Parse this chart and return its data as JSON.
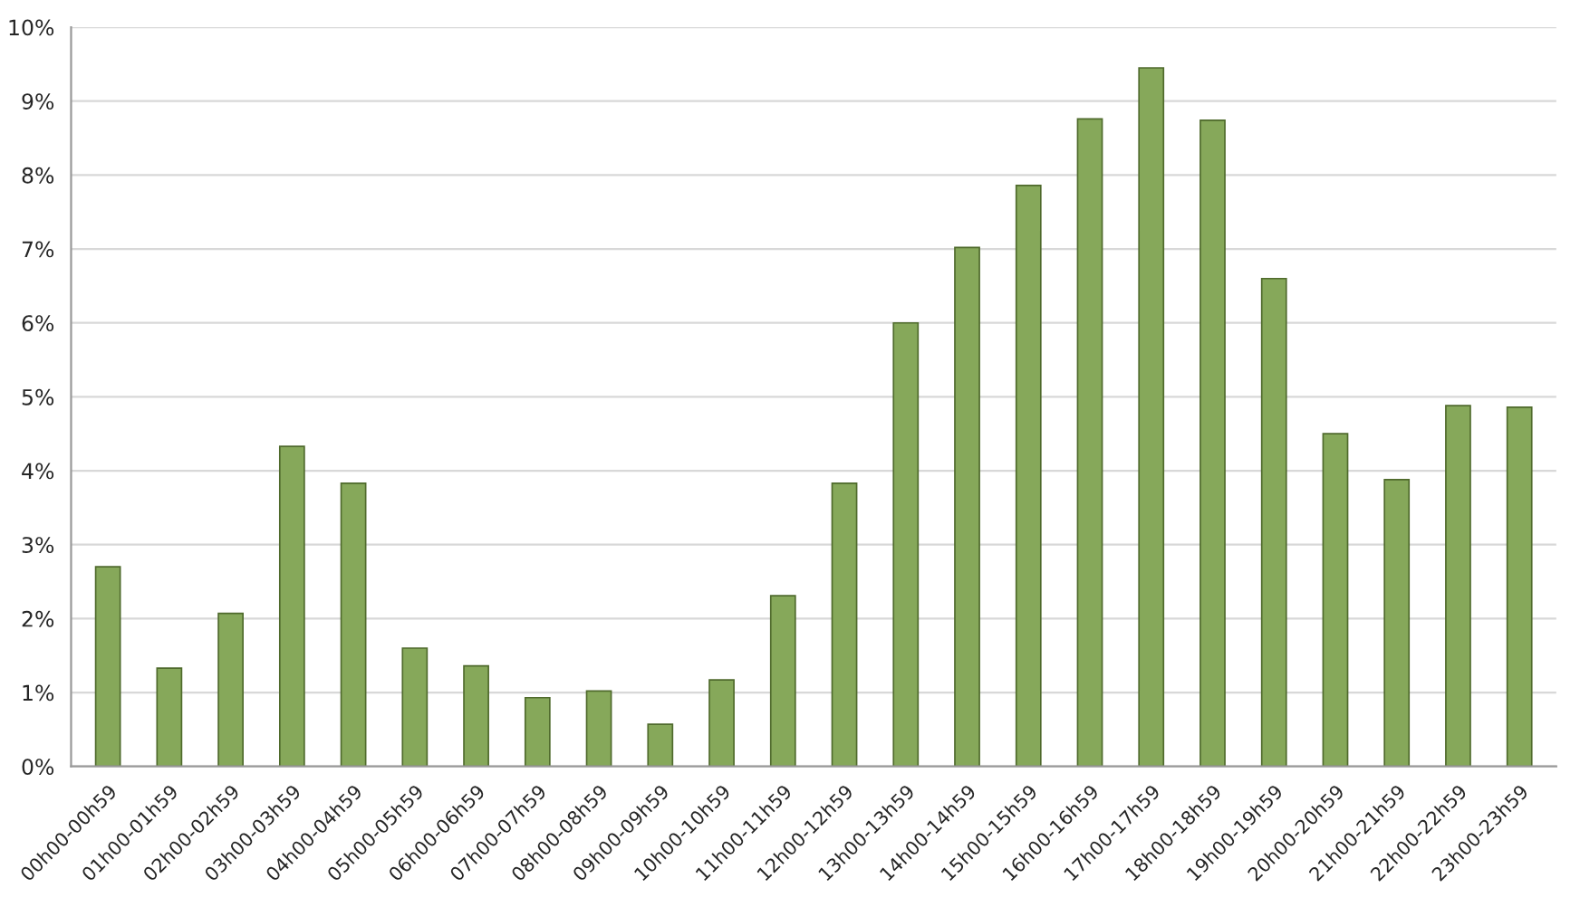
{
  "chart_data": {
    "type": "bar",
    "categories": [
      "00h00-00h59",
      "01h00-01h59",
      "02h00-02h59",
      "03h00-03h59",
      "04h00-04h59",
      "05h00-05h59",
      "06h00-06h59",
      "07h00-07h59",
      "08h00-08h59",
      "09h00-09h59",
      "10h00-10h59",
      "11h00-11h59",
      "12h00-12h59",
      "13h00-13h59",
      "14h00-14h59",
      "15h00-15h59",
      "16h00-16h59",
      "17h00-17h59",
      "18h00-18h59",
      "19h00-19h59",
      "20h00-20h59",
      "21h00-21h59",
      "22h00-22h59",
      "23h00-23h59"
    ],
    "values": [
      2.7,
      1.33,
      2.07,
      4.33,
      3.83,
      1.6,
      1.36,
      0.93,
      1.02,
      0.57,
      1.17,
      2.31,
      3.83,
      6.0,
      7.02,
      7.86,
      8.76,
      9.45,
      8.74,
      6.6,
      4.5,
      3.88,
      4.88,
      4.86
    ],
    "color": "#86a85a",
    "ylim": [
      0,
      10
    ],
    "yticks": [
      {
        "value": 0,
        "label": "0%"
      },
      {
        "value": 1,
        "label": "1%"
      },
      {
        "value": 2,
        "label": "2%"
      },
      {
        "value": 3,
        "label": "3%"
      },
      {
        "value": 4,
        "label": "4%"
      },
      {
        "value": 5,
        "label": "5%"
      },
      {
        "value": 6,
        "label": "6%"
      },
      {
        "value": 7,
        "label": "7%"
      },
      {
        "value": 8,
        "label": "8%"
      },
      {
        "value": 9,
        "label": "9%"
      },
      {
        "value": 10,
        "label": "10%"
      }
    ],
    "grid": "y"
  }
}
